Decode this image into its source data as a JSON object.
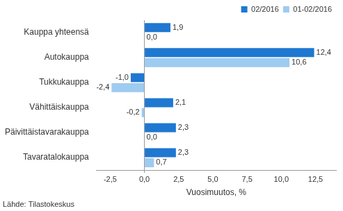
{
  "chart_data": {
    "type": "bar",
    "orientation": "horizontal",
    "categories": [
      "Kauppa yhteensä",
      "Autokauppa",
      "Tukkukauppa",
      "Vähittäiskauppa",
      "Päivittäistavarakauppa",
      "Tavaratalokauppa"
    ],
    "series": [
      {
        "name": "02/2016",
        "color": "#1f78d1",
        "values": [
          1.9,
          12.4,
          -1.0,
          2.1,
          2.3,
          2.3
        ],
        "value_labels": [
          "1,9",
          "12,4",
          "-1,0",
          "2,1",
          "2,3",
          "2,3"
        ]
      },
      {
        "name": "01-02/2016",
        "color": "#9ecbf0",
        "values": [
          0.0,
          10.6,
          -2.4,
          -0.2,
          0.0,
          0.7
        ],
        "value_labels": [
          "0,0",
          "10,6",
          "-2,4",
          "-0,2",
          "0,0",
          "0,7"
        ]
      }
    ],
    "x_label": "Vuosimuutos, %",
    "xlim": [
      -3.5,
      14
    ],
    "xticks": [
      {
        "value": -2.5,
        "label": "-2,5"
      },
      {
        "value": 0,
        "label": "0,0"
      },
      {
        "value": 2.5,
        "label": "2,5"
      },
      {
        "value": 5,
        "label": "5,0"
      },
      {
        "value": 7.5,
        "label": "7,5"
      },
      {
        "value": 10,
        "label": "10,0"
      },
      {
        "value": 12.5,
        "label": "12,5"
      }
    ],
    "grid": false,
    "legend": "top-right",
    "data_labels": true,
    "source": "Lähde: Tilastokeskus"
  }
}
